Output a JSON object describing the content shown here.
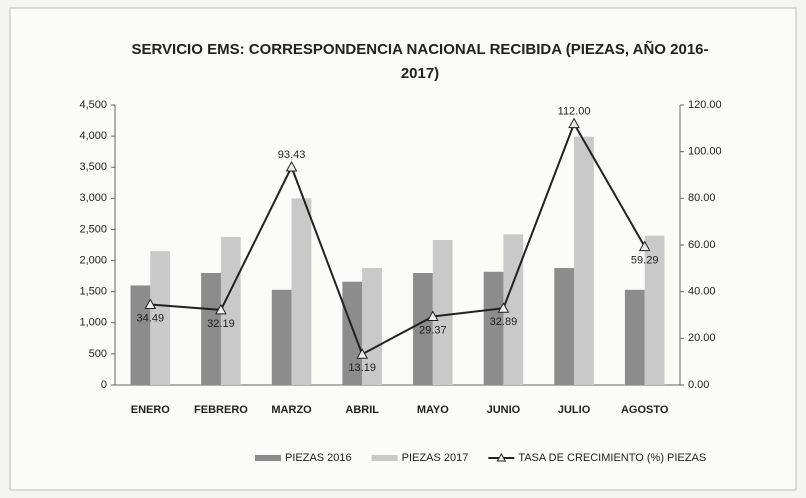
{
  "chart_data": {
    "type": "bar",
    "title": "SERVICIO EMS: CORRESPONDENCIA NACIONAL RECIBIDA (PIEZAS, AÑO 2016-2017)",
    "categories": [
      "ENERO",
      "FEBRERO",
      "MARZO",
      "ABRIL",
      "MAYO",
      "JUNIO",
      "JULIO",
      "AGOSTO"
    ],
    "series": [
      {
        "name": "PIEZAS 2016",
        "type": "bar",
        "color": "#8c8c8c",
        "values": [
          1600,
          1800,
          1530,
          1660,
          1800,
          1820,
          1880,
          1530
        ]
      },
      {
        "name": "PIEZAS 2017",
        "type": "bar",
        "color": "#c9c9c9",
        "values": [
          2150,
          2380,
          3000,
          1880,
          2330,
          2420,
          3990,
          2400
        ]
      },
      {
        "name": "TASA DE CRECIMIENTO (%) PIEZAS",
        "type": "line",
        "axis": "y2",
        "color": "#222222",
        "values": [
          34.49,
          32.19,
          93.43,
          13.19,
          29.37,
          32.89,
          112.0,
          59.29
        ],
        "value_labels": [
          "34.49",
          "32.19",
          "93.43",
          "13.19",
          "29.37",
          "32.89",
          "112.00",
          "59.29"
        ]
      }
    ],
    "ylim": [
      0,
      4500
    ],
    "yticks": [
      0,
      500,
      {
        "value": 1000,
        "label": "1,000"
      },
      {
        "value": 1500,
        "label": "1,500"
      },
      {
        "value": 2000,
        "label": "2,000"
      },
      {
        "value": 2500,
        "label": "2,500"
      },
      {
        "value": 3000,
        "label": "3,000"
      },
      {
        "value": 3500,
        "label": "3,500"
      },
      {
        "value": 4000,
        "label": "4,000"
      },
      {
        "value": 4500,
        "label": "4,500"
      }
    ],
    "y2lim": [
      0,
      120
    ],
    "y2ticks": [
      {
        "value": 0,
        "label": "0.00"
      },
      {
        "value": 20,
        "label": "20.00"
      },
      {
        "value": 40,
        "label": "40.00"
      },
      {
        "value": 60,
        "label": "60.00"
      },
      {
        "value": 80,
        "label": "80.00"
      },
      {
        "value": 100,
        "label": "100.00"
      },
      {
        "value": 120,
        "label": "120.00"
      }
    ],
    "grid": false,
    "legend": "bottom"
  }
}
